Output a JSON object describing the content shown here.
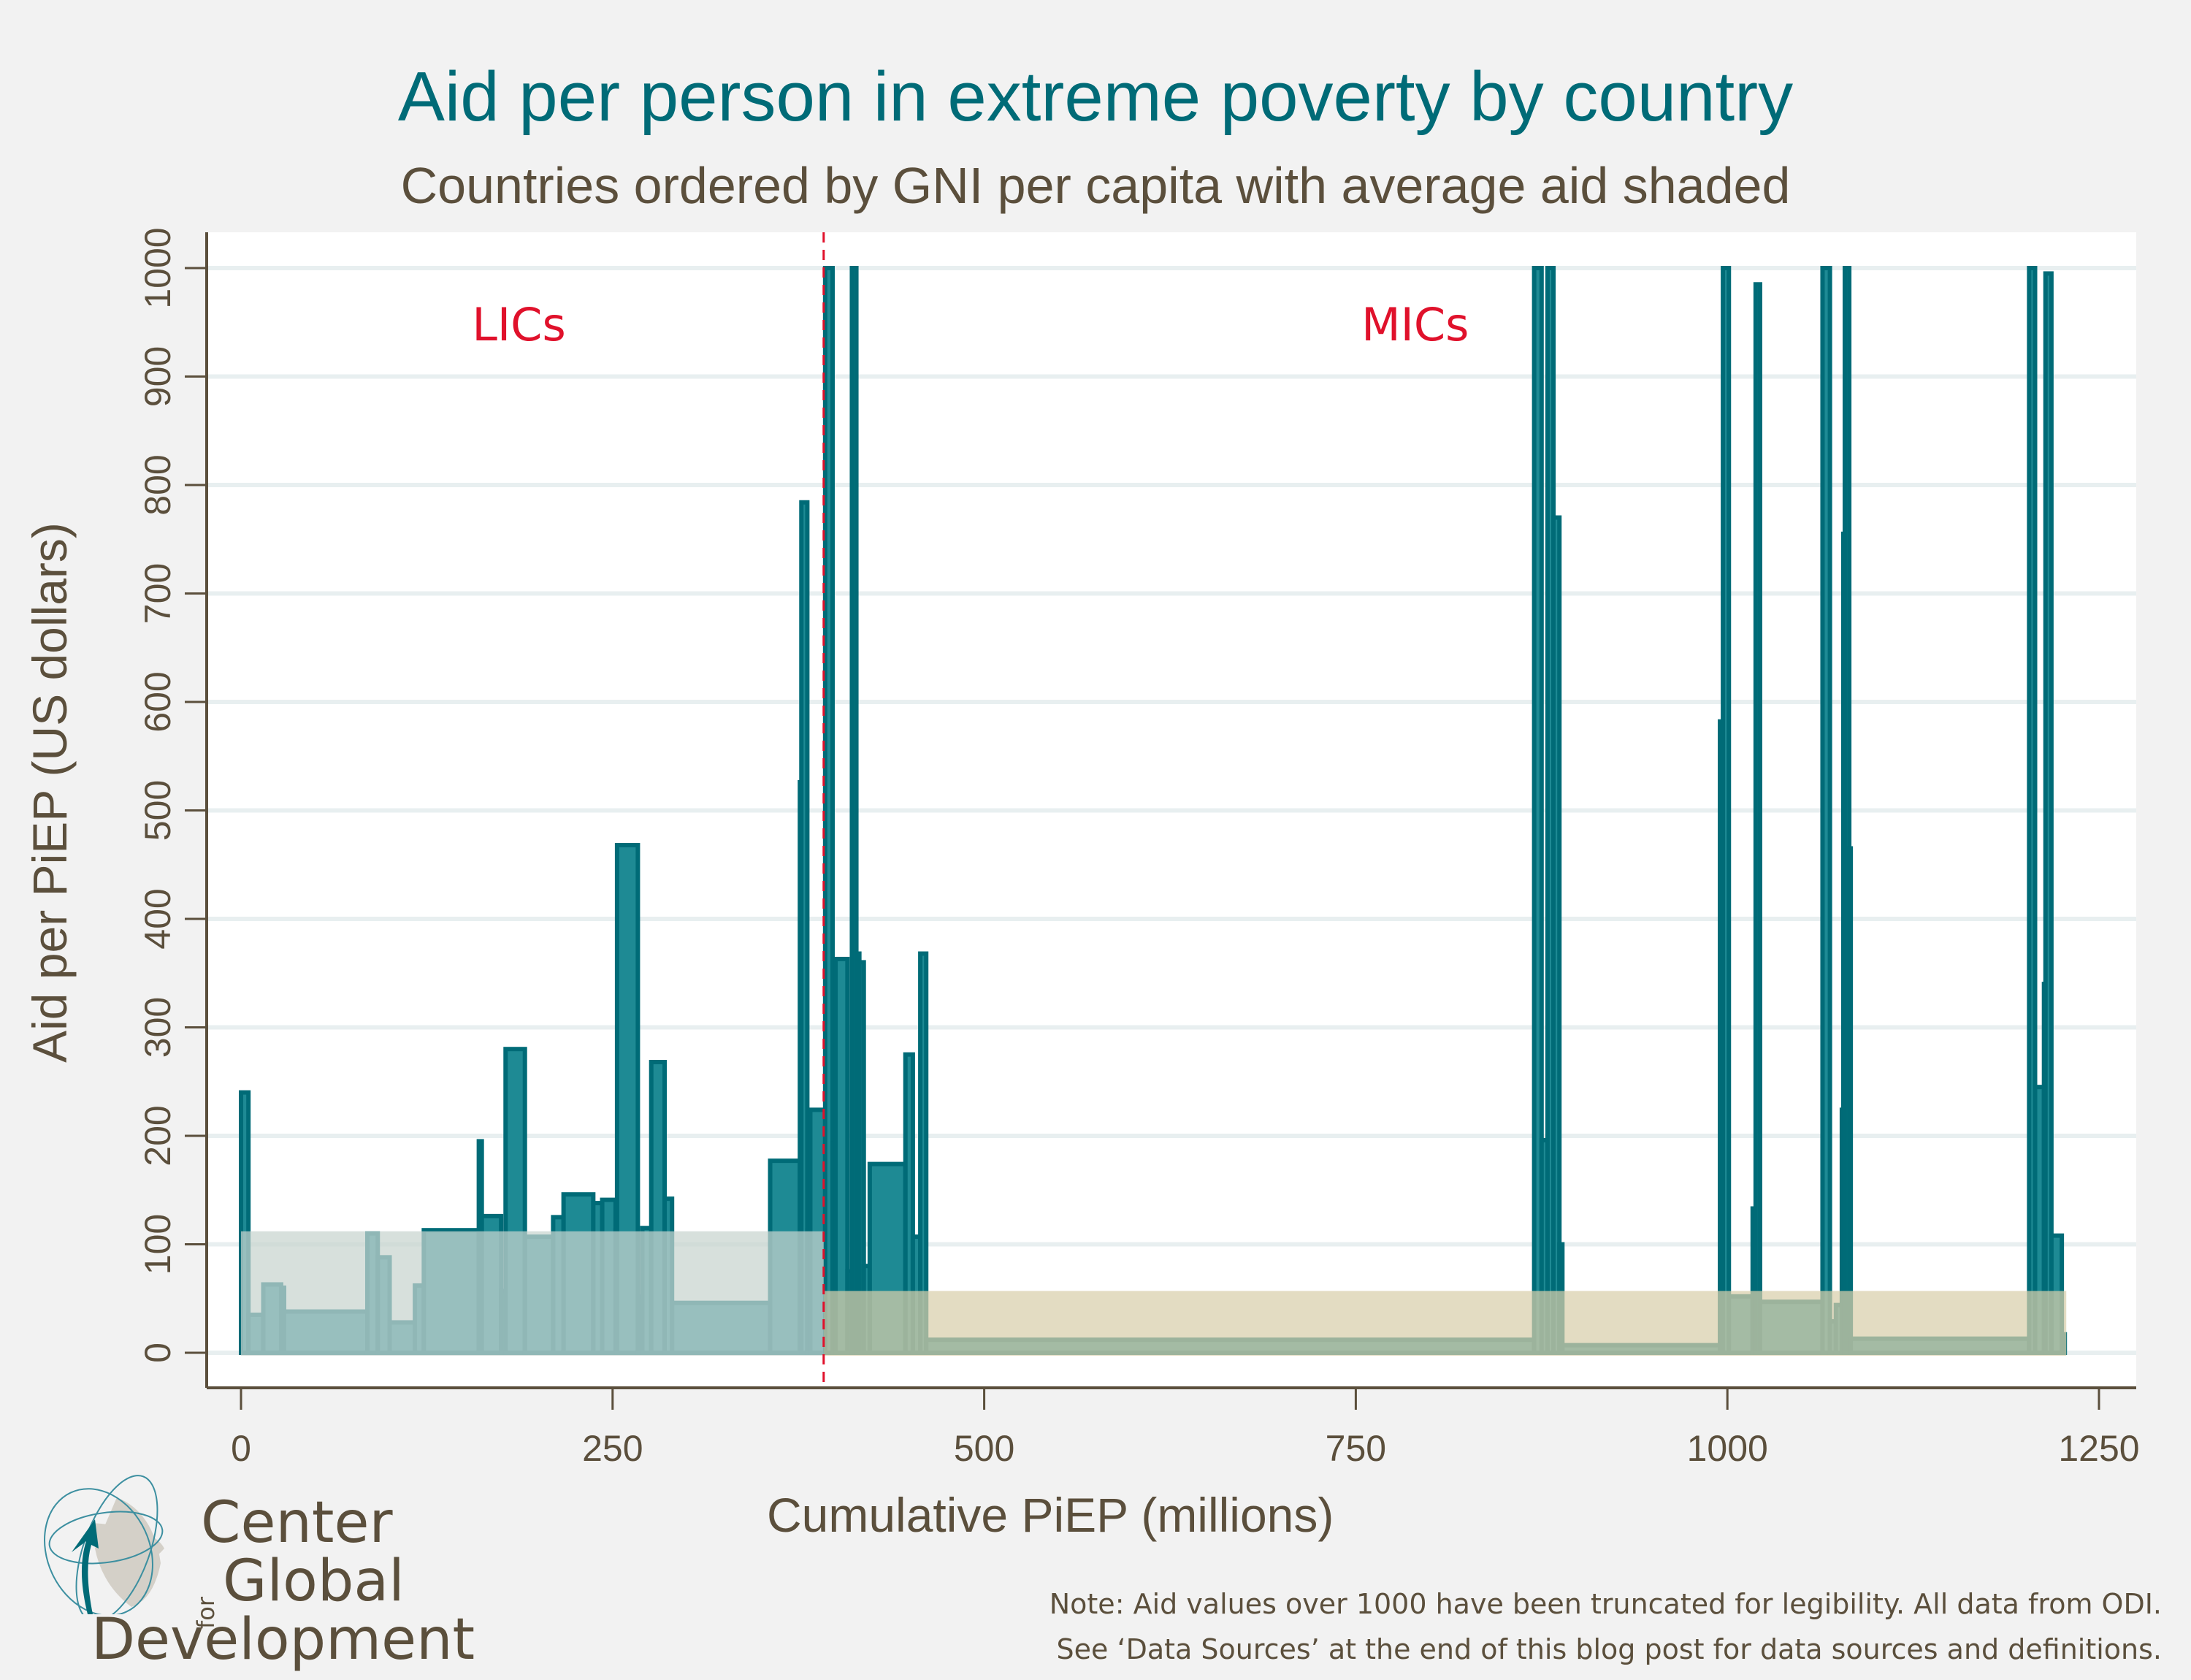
{
  "title": "Aid per person in extreme poverty by country",
  "subtitle": "Countries ordered by GNI per capita with average aid shaded",
  "note_lines": [
    "Note: Aid values over 1000 have been truncated for legibility. All data from ODI.",
    "See ‘Data Sources’ at the end of this blog post for data sources and definitions."
  ],
  "logo": {
    "line1": "Center",
    "for": "for",
    "line2": "Global",
    "line3": "Development"
  },
  "colors": {
    "bar_edge": "#006b77",
    "bar_fill": "#1e8a94",
    "lic_avg_fill": "#c8d4cf",
    "mic_avg_fill": "#d8ceaa",
    "threshold": "#e0112b",
    "group_label": "#e0112b",
    "axis": "#5b4f3c",
    "grid": "#e8eff0"
  },
  "chart_data": {
    "type": "bar",
    "subtype": "variable-width bar (Marimekko-style) with shaded group averages",
    "title": "Aid per person in extreme poverty by country",
    "subtitle": "Countries ordered by GNI per capita with average aid shaded",
    "xlabel": "Cumulative PiEP (millions)",
    "ylabel": "Aid per PiEP (US dollars)",
    "xlim": [
      -5,
      1255
    ],
    "ylim": [
      -30,
      1030
    ],
    "xticks": [
      0,
      250,
      500,
      750,
      1000,
      1250
    ],
    "yticks": [
      0,
      100,
      200,
      300,
      400,
      500,
      600,
      700,
      800,
      900,
      1000
    ],
    "grid": true,
    "threshold_x": 392,
    "group_labels": [
      {
        "text": "LICs",
        "x": 187,
        "y": 945
      },
      {
        "text": "MICs",
        "x": 790,
        "y": 945
      }
    ],
    "group_averages": [
      {
        "group": "LICs",
        "x0": 0,
        "x1": 392,
        "value": 112
      },
      {
        "group": "MICs",
        "x0": 392,
        "x1": 1228,
        "value": 57
      }
    ],
    "bars": [
      {
        "x0": 0,
        "x1": 5,
        "value": 240
      },
      {
        "x0": 5,
        "x1": 15,
        "value": 35
      },
      {
        "x0": 15,
        "x1": 27,
        "value": 63
      },
      {
        "x0": 27,
        "x1": 29,
        "value": 60
      },
      {
        "x0": 29,
        "x1": 85,
        "value": 38
      },
      {
        "x0": 85,
        "x1": 92,
        "value": 110
      },
      {
        "x0": 92,
        "x1": 100,
        "value": 88
      },
      {
        "x0": 100,
        "x1": 117,
        "value": 28
      },
      {
        "x0": 117,
        "x1": 123,
        "value": 62
      },
      {
        "x0": 123,
        "x1": 160,
        "value": 113
      },
      {
        "x0": 160,
        "x1": 162,
        "value": 195
      },
      {
        "x0": 162,
        "x1": 175,
        "value": 126
      },
      {
        "x0": 175,
        "x1": 178,
        "value": 57
      },
      {
        "x0": 178,
        "x1": 191,
        "value": 280
      },
      {
        "x0": 191,
        "x1": 210,
        "value": 107
      },
      {
        "x0": 210,
        "x1": 217,
        "value": 125
      },
      {
        "x0": 217,
        "x1": 237,
        "value": 146
      },
      {
        "x0": 237,
        "x1": 243,
        "value": 138
      },
      {
        "x0": 243,
        "x1": 252,
        "value": 141
      },
      {
        "x0": 252,
        "x1": 253,
        "value": 113
      },
      {
        "x0": 253,
        "x1": 267,
        "value": 468
      },
      {
        "x0": 267,
        "x1": 270,
        "value": 52
      },
      {
        "x0": 270,
        "x1": 276,
        "value": 115
      },
      {
        "x0": 276,
        "x1": 285,
        "value": 268
      },
      {
        "x0": 285,
        "x1": 290,
        "value": 142
      },
      {
        "x0": 290,
        "x1": 356,
        "value": 46
      },
      {
        "x0": 356,
        "x1": 376,
        "value": 177
      },
      {
        "x0": 376,
        "x1": 377,
        "value": 526
      },
      {
        "x0": 377,
        "x1": 381,
        "value": 784
      },
      {
        "x0": 381,
        "x1": 383,
        "value": 113
      },
      {
        "x0": 383,
        "x1": 393,
        "value": 224
      },
      {
        "x0": 393,
        "x1": 398,
        "value": 1000
      },
      {
        "x0": 398,
        "x1": 400,
        "value": 193
      },
      {
        "x0": 400,
        "x1": 408,
        "value": 363
      },
      {
        "x0": 408,
        "x1": 411,
        "value": 75
      },
      {
        "x0": 411,
        "x1": 414,
        "value": 1000
      },
      {
        "x0": 414,
        "x1": 416,
        "value": 368
      },
      {
        "x0": 416,
        "x1": 419,
        "value": 360
      },
      {
        "x0": 419,
        "x1": 423,
        "value": 80
      },
      {
        "x0": 423,
        "x1": 447,
        "value": 174
      },
      {
        "x0": 447,
        "x1": 452,
        "value": 275
      },
      {
        "x0": 452,
        "x1": 457,
        "value": 107
      },
      {
        "x0": 457,
        "x1": 461,
        "value": 368
      },
      {
        "x0": 461,
        "x1": 870,
        "value": 12
      },
      {
        "x0": 870,
        "x1": 875,
        "value": 1000
      },
      {
        "x0": 875,
        "x1": 879,
        "value": 196
      },
      {
        "x0": 879,
        "x1": 883,
        "value": 1000
      },
      {
        "x0": 883,
        "x1": 887,
        "value": 770
      },
      {
        "x0": 887,
        "x1": 889,
        "value": 100
      },
      {
        "x0": 889,
        "x1": 995,
        "value": 7
      },
      {
        "x0": 995,
        "x1": 997,
        "value": 582
      },
      {
        "x0": 997,
        "x1": 1001,
        "value": 1000
      },
      {
        "x0": 1001,
        "x1": 1017,
        "value": 52
      },
      {
        "x0": 1017,
        "x1": 1019,
        "value": 133
      },
      {
        "x0": 1019,
        "x1": 1022,
        "value": 985
      },
      {
        "x0": 1022,
        "x1": 1064,
        "value": 47
      },
      {
        "x0": 1064,
        "x1": 1069,
        "value": 1000
      },
      {
        "x0": 1069,
        "x1": 1073,
        "value": 29
      },
      {
        "x0": 1073,
        "x1": 1077,
        "value": 44
      },
      {
        "x0": 1077,
        "x1": 1078,
        "value": 224
      },
      {
        "x0": 1078,
        "x1": 1079,
        "value": 755
      },
      {
        "x0": 1079,
        "x1": 1082,
        "value": 1000
      },
      {
        "x0": 1082,
        "x1": 1083,
        "value": 465
      },
      {
        "x0": 1083,
        "x1": 1203,
        "value": 13
      },
      {
        "x0": 1203,
        "x1": 1207,
        "value": 1000
      },
      {
        "x0": 1207,
        "x1": 1213,
        "value": 245
      },
      {
        "x0": 1213,
        "x1": 1214,
        "value": 340
      },
      {
        "x0": 1214,
        "x1": 1218,
        "value": 995
      },
      {
        "x0": 1218,
        "x1": 1225,
        "value": 108
      },
      {
        "x0": 1225,
        "x1": 1227,
        "value": 17
      }
    ]
  }
}
